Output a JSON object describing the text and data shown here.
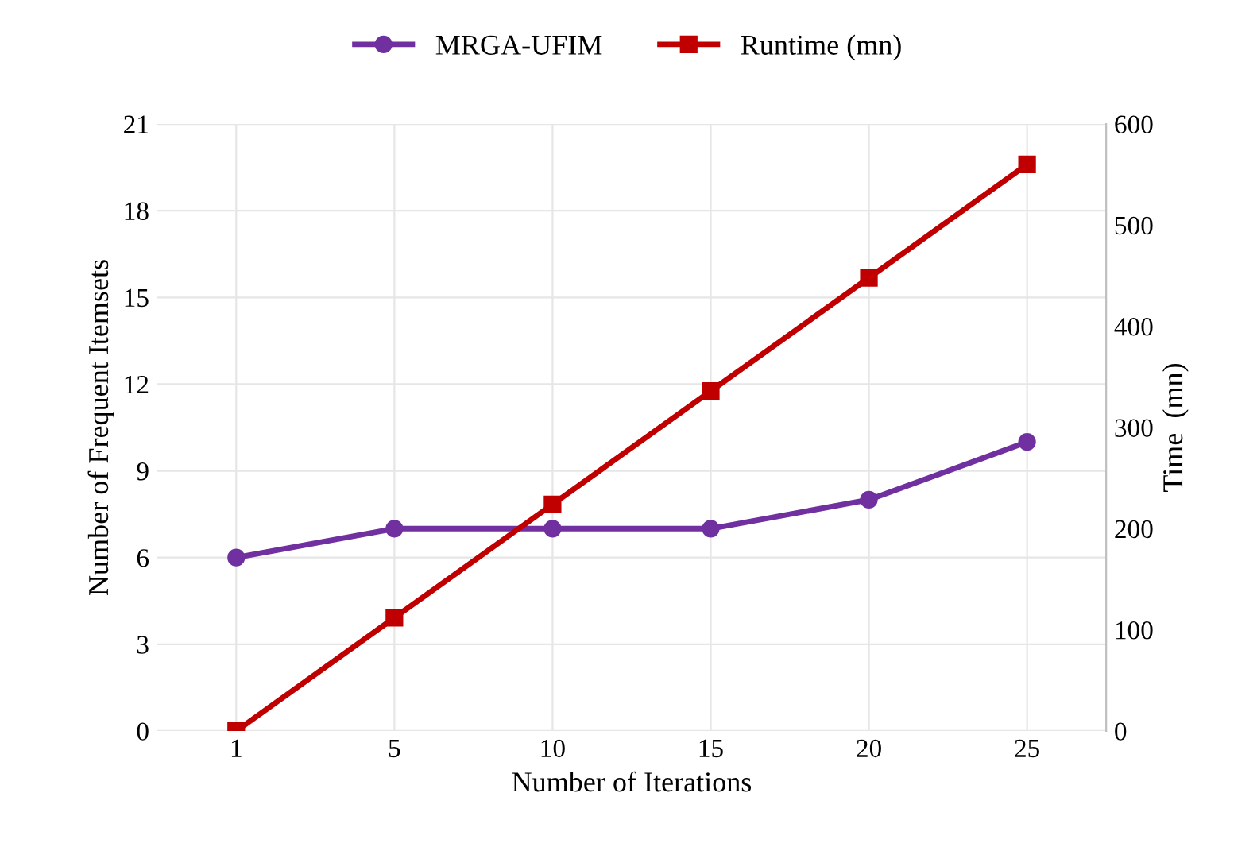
{
  "chart_data": {
    "type": "line",
    "xlabel": "Number of Iterations",
    "ylabel": "Number of Frequent Itemsets",
    "y2label": "Time  (mn)",
    "categories": [
      "1",
      "5",
      "10",
      "15",
      "20",
      "25"
    ],
    "series": [
      {
        "name": "MRGA-UFIM",
        "color": "#7030a0",
        "marker": "circle",
        "values": [
          6,
          7,
          7,
          7,
          8,
          10
        ]
      },
      {
        "name": "Runtime (mn)",
        "color": "#c00000",
        "marker": "square",
        "axis": "y2",
        "values": [
          0,
          112,
          224,
          336,
          448,
          560
        ]
      }
    ],
    "ylim": [
      0,
      21
    ],
    "yticks": [
      0,
      3,
      6,
      9,
      12,
      15,
      18,
      21
    ],
    "y2lim": [
      0,
      600
    ],
    "y2ticks": [
      0,
      100,
      200,
      300,
      400,
      500,
      600
    ],
    "grid": true,
    "legend": "top"
  }
}
